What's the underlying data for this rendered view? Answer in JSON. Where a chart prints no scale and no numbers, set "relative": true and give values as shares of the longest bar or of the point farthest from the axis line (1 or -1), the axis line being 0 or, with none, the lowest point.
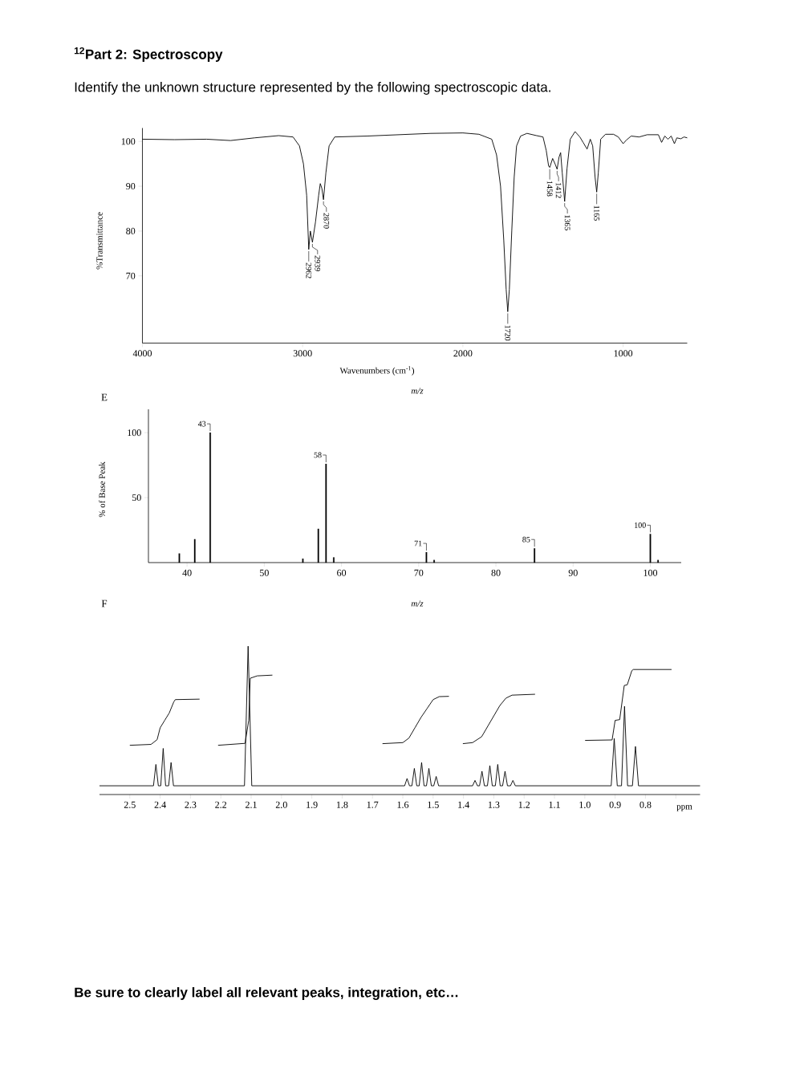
{
  "chart_data": [
    {
      "type": "line",
      "title": "$^{12}$Part 2: Spectroscopy",
      "subtitle": "Identify the unknown structure represented by the following spectroscopic data.",
      "xlabel": "Wavenumbers (cm$^{-1}$)",
      "ylabel": "%Transmittance",
      "xlim": [
        4000,
        600
      ],
      "ylim": [
        55,
        103
      ],
      "xticks": [
        4000,
        3000,
        2000,
        1000
      ],
      "yticks": [
        100,
        90,
        80,
        70
      ],
      "series": [
        {
          "color": "#000000",
          "x": [
            4000,
            3800,
            3600,
            3450,
            3300,
            3150,
            3060,
            3020,
            2995,
            2975,
            2962,
            2952,
            2939,
            2920,
            2900,
            2890,
            2880,
            2870,
            2855,
            2835,
            2800,
            2600,
            2400,
            2200,
            2000,
            1900,
            1820,
            1790,
            1765,
            1745,
            1730,
            1720,
            1710,
            1695,
            1680,
            1665,
            1640,
            1600,
            1540,
            1500,
            1480,
            1465,
            1458,
            1440,
            1425,
            1412,
            1400,
            1390,
            1380,
            1365,
            1350,
            1330,
            1300,
            1270,
            1250,
            1225,
            1205,
            1190,
            1175,
            1165,
            1155,
            1140,
            1110,
            1060,
            1030,
            1000,
            980,
            950,
            900,
            850,
            780,
            760,
            740,
            720,
            700,
            680,
            665,
            640,
            620,
            600
          ],
          "values": [
            100.5,
            100.4,
            100.5,
            100.2,
            100.8,
            101.3,
            101.0,
            99,
            95,
            88,
            75.9,
            80,
            77.5,
            82,
            88,
            90.6,
            89.5,
            87,
            93,
            99,
            101,
            101.2,
            101.5,
            101.8,
            101.9,
            101.6,
            100.5,
            97,
            90,
            78,
            67,
            62,
            67,
            80,
            92,
            99,
            101.2,
            101.8,
            101.3,
            101.0,
            98,
            94.5,
            94.2,
            96.2,
            95,
            93.8,
            96.5,
            97.5,
            93,
            86.6,
            94,
            100.5,
            102.2,
            101,
            99.8,
            98.3,
            100.5,
            99,
            92,
            88.7,
            93,
            100.5,
            101.6,
            101.6,
            101,
            99.5,
            100.3,
            101.2,
            101,
            101.5,
            101.5,
            99.8,
            101.2,
            100.5,
            101.2,
            99.5,
            100.8,
            100.6,
            101,
            100.8
          ]
        }
      ],
      "annotations": [
        {
          "text": "2962",
          "x": 2962,
          "y": 75.9
        },
        {
          "text": "2939",
          "x": 2939,
          "y": 77.5
        },
        {
          "text": "2870",
          "x": 2870,
          "y": 87
        },
        {
          "text": "1720",
          "x": 1720,
          "y": 62
        },
        {
          "text": "1458",
          "x": 1458,
          "y": 94.2
        },
        {
          "text": "1412",
          "x": 1412,
          "y": 93.8
        },
        {
          "text": "1365",
          "x": 1365,
          "y": 86.6
        },
        {
          "text": "1165",
          "x": 1165,
          "y": 88.7
        }
      ]
    },
    {
      "type": "bar",
      "xlabel": "m/z",
      "ylabel": "% of Base Peak",
      "xlim": [
        35,
        104
      ],
      "ylim": [
        0,
        118
      ],
      "xticks": [
        40,
        50,
        60,
        70,
        80,
        90,
        100
      ],
      "yticks": [
        100,
        50
      ],
      "color": "#000000",
      "x": [
        39,
        41,
        43,
        55,
        57,
        58,
        59,
        71,
        72,
        85,
        100,
        101
      ],
      "values": [
        7,
        18,
        100,
        3,
        26,
        76,
        4,
        8,
        2,
        11,
        22,
        2
      ],
      "annotations": [
        "m/z",
        "E",
        {
          "text": "43",
          "x": 43,
          "y": 100
        },
        {
          "text": "58",
          "x": 58,
          "y": 76
        },
        {
          "text": "71",
          "x": 71,
          "y": 8
        },
        {
          "text": "85",
          "x": 85,
          "y": 11
        },
        {
          "text": "100",
          "x": 100,
          "y": 22
        }
      ]
    },
    {
      "type": "line",
      "relative": true,
      "xlabel": "ppm",
      "xlim": [
        2.6,
        0.62
      ],
      "xticks": [
        2.5,
        2.4,
        2.3,
        2.2,
        2.1,
        {
          "value": 2,
          "label": "2.0"
        },
        1.9,
        1.8,
        1.7,
        1.6,
        1.5,
        1.4,
        1.3,
        1.2,
        1.1,
        {
          "value": 1,
          "label": "1.0"
        },
        0.9,
        0.8,
        {
          "value": 0.7,
          "label": null
        }
      ],
      "series": [
        {
          "color": "#000000",
          "x": [
            2.6,
            2.422,
            2.414,
            2.406,
            2.398,
            2.39,
            2.382,
            2.372,
            2.364,
            2.356,
            2.122,
            2.11,
            2.098,
            1.594,
            1.586,
            1.578,
            1.57,
            1.562,
            1.554,
            1.546,
            1.538,
            1.53,
            1.522,
            1.514,
            1.506,
            1.498,
            1.49,
            1.482,
            1.37,
            1.362,
            1.354,
            1.347,
            1.339,
            1.331,
            1.321,
            1.313,
            1.305,
            1.295,
            1.287,
            1.279,
            1.271,
            1.263,
            1.255,
            1.245,
            1.237,
            1.229,
            0.913,
            0.903,
            0.893,
            0.879,
            0.869,
            0.859,
            0.843,
            0.833,
            0.823,
            0.62
          ],
          "values": [
            0.059,
            0.059,
            0.203,
            0.059,
            0.059,
            0.311,
            0.059,
            0.059,
            0.216,
            0.059,
            0.059,
            1.0,
            0.059,
            0.059,
            0.108,
            0.059,
            0.059,
            0.176,
            0.059,
            0.059,
            0.216,
            0.059,
            0.059,
            0.176,
            0.059,
            0.059,
            0.122,
            0.059,
            0.059,
            0.095,
            0.059,
            0.059,
            0.157,
            0.059,
            0.059,
            0.195,
            0.059,
            0.059,
            0.203,
            0.059,
            0.059,
            0.157,
            0.059,
            0.059,
            0.095,
            0.059,
            0.059,
            0.378,
            0.059,
            0.059,
            0.595,
            0.059,
            0.059,
            0.324,
            0.059,
            0.059
          ]
        },
        {
          "color": "#000000",
          "x": [
            2.5,
            2.43,
            2.41,
            2.4,
            2.385,
            2.37,
            2.355,
            2.35,
            2.27
          ],
          "values": [
            0.332,
            0.338,
            0.37,
            0.45,
            0.5,
            0.55,
            0.625,
            0.64,
            0.643
          ]
        },
        {
          "color": "#000000",
          "x": [
            2.209,
            2.12,
            2.108,
            2.103,
            2.08,
            2.03
          ],
          "values": [
            0.332,
            0.345,
            0.5,
            0.784,
            0.8,
            0.805
          ]
        },
        {
          "color": "#000000",
          "x": [
            1.667,
            1.6,
            1.58,
            1.56,
            1.54,
            1.52,
            1.5,
            1.48,
            1.448
          ],
          "values": [
            0.343,
            0.35,
            0.38,
            0.45,
            0.52,
            0.58,
            0.64,
            0.66,
            0.662
          ]
        },
        {
          "color": "#000000",
          "x": [
            1.402,
            1.37,
            1.34,
            1.32,
            1.3,
            1.28,
            1.26,
            1.24,
            1.164
          ],
          "values": [
            0.343,
            0.35,
            0.39,
            0.46,
            0.53,
            0.6,
            0.65,
            0.67,
            0.676
          ]
        },
        {
          "color": "#000000",
          "x": [
            0.999,
            0.91,
            0.9,
            0.885,
            0.87,
            0.86,
            0.845,
            0.84,
            0.714
          ],
          "values": [
            0.365,
            0.368,
            0.5,
            0.505,
            0.735,
            0.74,
            0.835,
            0.843,
            0.843
          ]
        }
      ],
      "annotations": [
        "F",
        "Be sure to clearly label all relevant peaks, integration, etc…"
      ]
    }
  ]
}
